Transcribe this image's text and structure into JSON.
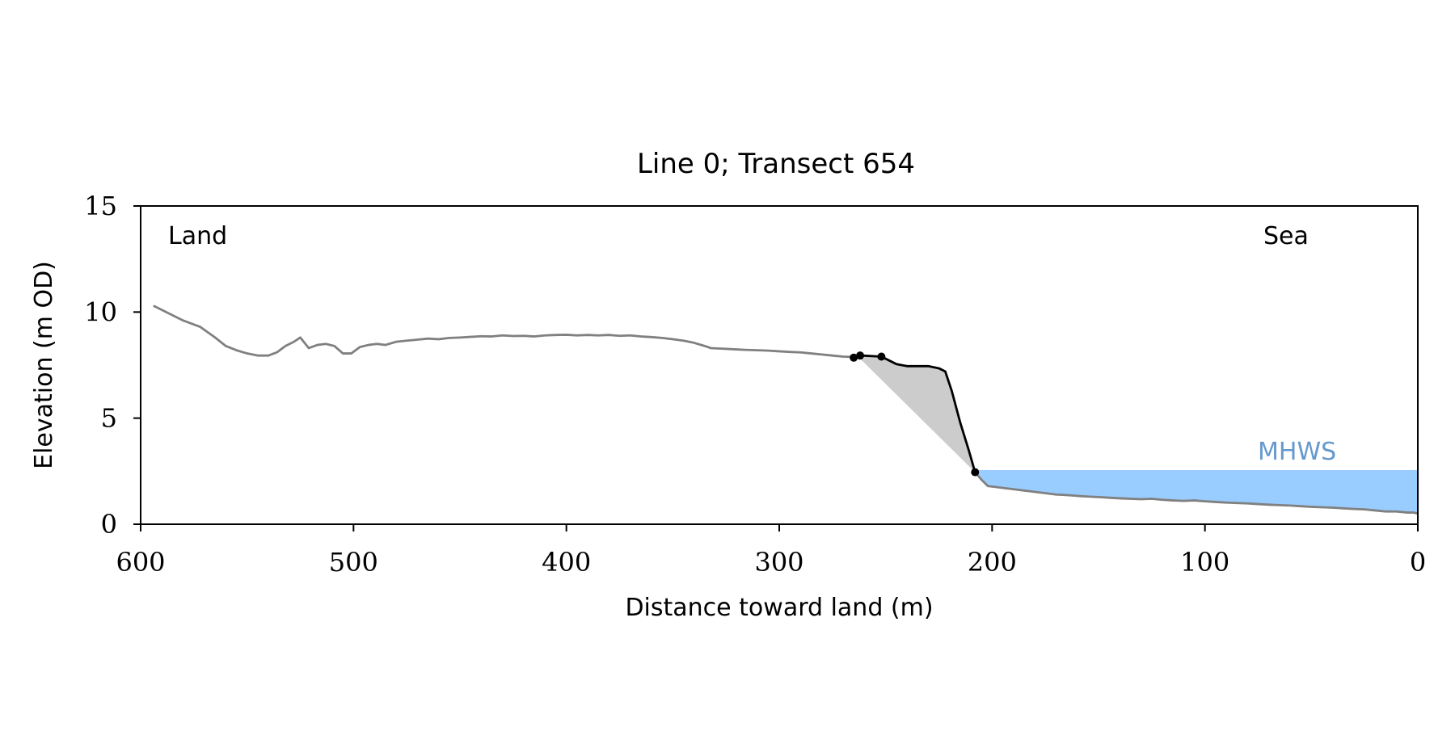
{
  "chart_data": {
    "type": "line",
    "title": "Line 0; Transect 654",
    "xlabel": "Distance toward land (m)",
    "ylabel": "Elevation (m OD)",
    "xlim": [
      600,
      0
    ],
    "ylim": [
      0,
      15
    ],
    "x_ticks": [
      600,
      500,
      400,
      300,
      200,
      100,
      0
    ],
    "y_ticks": [
      0,
      5,
      10,
      15
    ],
    "grid": false,
    "annotations": {
      "land_label": "Land",
      "sea_label": "Sea",
      "mhws_label": "MHWS"
    },
    "mhws_level": 2.55,
    "colors": {
      "profile": "#808080",
      "cliff_line": "#000000",
      "wedge_fill": "#cccccc",
      "water_fill": "#99ccff",
      "mhws_text": "#6699cc"
    },
    "profile": {
      "x": [
        594,
        588,
        580,
        572,
        565,
        560,
        555,
        550,
        545,
        540,
        536,
        532,
        528,
        525,
        521,
        517,
        513,
        509,
        505,
        501,
        497,
        493,
        489,
        485,
        480,
        475,
        470,
        465,
        460,
        455,
        450,
        445,
        440,
        435,
        430,
        425,
        420,
        415,
        410,
        405,
        400,
        395,
        390,
        385,
        380,
        375,
        370,
        365,
        360,
        355,
        350,
        345,
        340,
        335,
        332,
        328,
        322,
        316,
        310,
        305,
        300,
        295,
        290,
        285,
        280,
        275,
        270,
        265
      ],
      "y": [
        10.3,
        10.0,
        9.6,
        9.3,
        8.8,
        8.4,
        8.2,
        8.05,
        7.95,
        7.95,
        8.1,
        8.4,
        8.6,
        8.8,
        8.3,
        8.45,
        8.5,
        8.4,
        8.05,
        8.05,
        8.35,
        8.45,
        8.5,
        8.45,
        8.6,
        8.65,
        8.7,
        8.75,
        8.72,
        8.78,
        8.8,
        8.83,
        8.86,
        8.85,
        8.9,
        8.87,
        8.88,
        8.85,
        8.9,
        8.92,
        8.93,
        8.9,
        8.92,
        8.9,
        8.92,
        8.88,
        8.9,
        8.85,
        8.82,
        8.78,
        8.72,
        8.65,
        8.55,
        8.4,
        8.3,
        8.28,
        8.25,
        8.22,
        8.2,
        8.18,
        8.15,
        8.12,
        8.1,
        8.05,
        8.0,
        7.95,
        7.9,
        7.88
      ]
    },
    "cliff_line": {
      "x": [
        265,
        263,
        261,
        252,
        245,
        240,
        235,
        230,
        225,
        222,
        219,
        215,
        211,
        208
      ],
      "y": [
        7.85,
        7.9,
        7.95,
        7.9,
        7.55,
        7.45,
        7.45,
        7.45,
        7.35,
        7.2,
        6.3,
        4.8,
        3.5,
        2.45
      ]
    },
    "cliff_markers": {
      "x": [
        265,
        262,
        252,
        208
      ],
      "y": [
        7.85,
        7.95,
        7.9,
        2.45
      ]
    },
    "wedge": {
      "x": [
        263,
        261,
        252,
        245,
        240,
        235,
        230,
        225,
        222,
        219,
        215,
        211,
        208
      ],
      "y": [
        7.9,
        7.95,
        7.9,
        7.55,
        7.45,
        7.45,
        7.45,
        7.35,
        7.2,
        6.3,
        4.8,
        3.5,
        2.45
      ]
    },
    "seabed": {
      "x": [
        208,
        205,
        202,
        198,
        194,
        190,
        186,
        182,
        178,
        174,
        170,
        166,
        162,
        158,
        154,
        150,
        145,
        140,
        135,
        130,
        125,
        120,
        115,
        110,
        105,
        100,
        95,
        90,
        85,
        80,
        75,
        70,
        65,
        60,
        55,
        50,
        45,
        40,
        35,
        30,
        25,
        20,
        15,
        10,
        5,
        2,
        0
      ],
      "y": [
        2.45,
        2.1,
        1.8,
        1.75,
        1.7,
        1.65,
        1.6,
        1.55,
        1.5,
        1.45,
        1.4,
        1.38,
        1.35,
        1.32,
        1.3,
        1.28,
        1.25,
        1.22,
        1.2,
        1.18,
        1.2,
        1.15,
        1.12,
        1.1,
        1.12,
        1.08,
        1.05,
        1.02,
        1.0,
        0.98,
        0.95,
        0.92,
        0.9,
        0.88,
        0.85,
        0.82,
        0.8,
        0.78,
        0.75,
        0.72,
        0.7,
        0.65,
        0.6,
        0.6,
        0.55,
        0.55,
        0.5
      ]
    }
  }
}
